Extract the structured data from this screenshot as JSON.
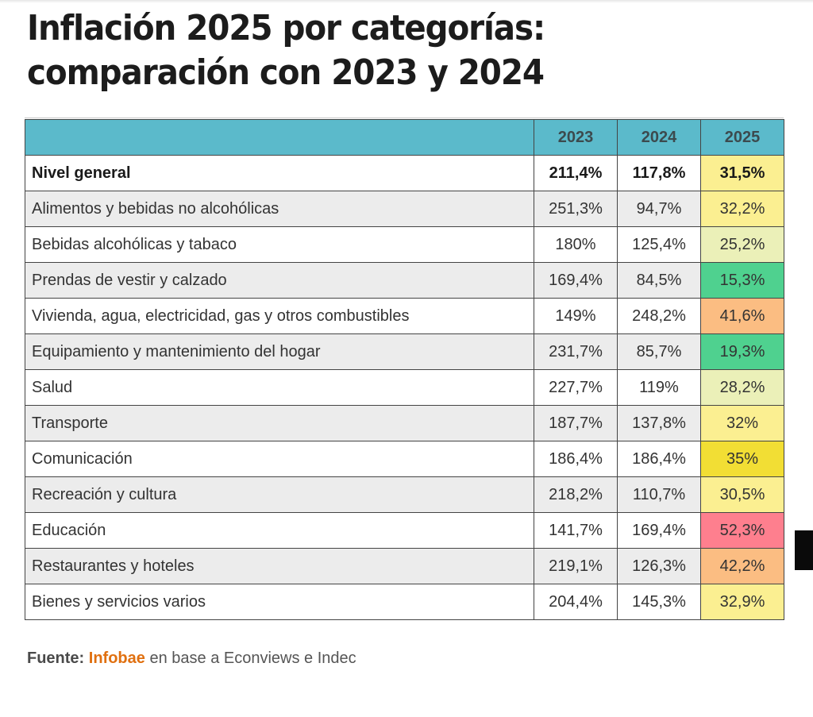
{
  "title_line1": "Inflación 2025 por categorías:",
  "title_line2": "comparación con 2023 y 2024",
  "source": {
    "label": "Fuente:",
    "brand": "Infobae",
    "rest": "en base a Econviews e Indec"
  },
  "colors": {
    "header": "#5bbacb",
    "source_brand": "#e07010"
  },
  "chart_data": {
    "type": "table",
    "title": "Inflación 2025 por categorías: comparación con 2023 y 2024",
    "columns": [
      "",
      "2023",
      "2024",
      "2025"
    ],
    "rows": [
      {
        "category": "Nivel general",
        "v2023": "211,4%",
        "v2024": "117,8%",
        "v2025": "31,5%",
        "bold": true,
        "color2025": "#fbef91"
      },
      {
        "category": "Alimentos y bebidas no alcohólicas",
        "v2023": "251,3%",
        "v2024": "94,7%",
        "v2025": "32,2%",
        "color2025": "#fbef91"
      },
      {
        "category": "Bebidas alcohólicas y tabaco",
        "v2023": "180%",
        "v2024": "125,4%",
        "v2025": "25,2%",
        "color2025": "#ebf0b8"
      },
      {
        "category": "Prendas de vestir y calzado",
        "v2023": "169,4%",
        "v2024": "84,5%",
        "v2025": "15,3%",
        "color2025": "#4fd18f"
      },
      {
        "category": "Vivienda, agua, electricidad, gas y otros combustibles",
        "v2023": "149%",
        "v2024": "248,2%",
        "v2025": "41,6%",
        "color2025": "#fbbd82"
      },
      {
        "category": "Equipamiento y mantenimiento del hogar",
        "v2023": "231,7%",
        "v2024": "85,7%",
        "v2025": "19,3%",
        "color2025": "#4fd18f"
      },
      {
        "category": "Salud",
        "v2023": "227,7%",
        "v2024": "119%",
        "v2025": "28,2%",
        "color2025": "#ebf0b8"
      },
      {
        "category": "Transporte",
        "v2023": "187,7%",
        "v2024": "137,8%",
        "v2025": "32%",
        "color2025": "#fbef91"
      },
      {
        "category": "Comunicación",
        "v2023": "186,4%",
        "v2024": "186,4%",
        "v2025": "35%",
        "color2025": "#f2de34"
      },
      {
        "category": "Recreación y cultura",
        "v2023": "218,2%",
        "v2024": "110,7%",
        "v2025": "30,5%",
        "color2025": "#fbef91"
      },
      {
        "category": "Educación",
        "v2023": "141,7%",
        "v2024": "169,4%",
        "v2025": "52,3%",
        "color2025": "#fe7f8e"
      },
      {
        "category": "Restaurantes y hoteles",
        "v2023": "219,1%",
        "v2024": "126,3%",
        "v2025": "42,2%",
        "color2025": "#fbbd82"
      },
      {
        "category": "Bienes y servicios varios",
        "v2023": "204,4%",
        "v2024": "145,3%",
        "v2025": "32,9%",
        "color2025": "#fbef91"
      }
    ]
  }
}
